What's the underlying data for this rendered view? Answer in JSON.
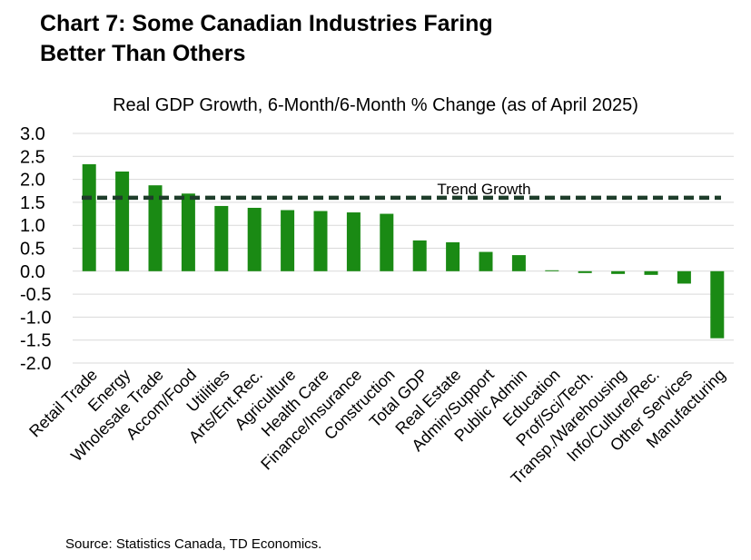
{
  "title": {
    "line1": "Chart 7: Some Canadian Industries Faring",
    "line2": "Better Than Others"
  },
  "source": "Source: Statistics Canada, TD Economics.",
  "colors": {
    "bar": "#1a8a14",
    "trend": "#1e3d2a",
    "grid": "#d9d9d9"
  },
  "chart_data": {
    "type": "bar",
    "title": "Real GDP Growth, 6-Month/6-Month % Change (as of April 2025)",
    "xlabel": "",
    "ylabel": "",
    "ylim": [
      -2.0,
      3.0
    ],
    "yticks": [
      3.0,
      2.5,
      2.0,
      1.5,
      1.0,
      0.5,
      0.0,
      -0.5,
      -1.0,
      -1.5,
      -2.0
    ],
    "ytick_labels": [
      "3.0",
      "2.5",
      "2.0",
      "1.5",
      "1.0",
      "0.5",
      "0.0",
      "-0.5",
      "-1.0",
      "-1.5",
      "-2.0"
    ],
    "grid": true,
    "categories": [
      "Retail Trade",
      "Energy",
      "Wholesale Trade",
      "Accom/Food",
      "Utilities",
      "Arts/Ent.Rec.",
      "Agriculture",
      "Health Care",
      "Finance/Insurance",
      "Construction",
      "Total GDP",
      "Real Estate",
      "Admin/Support",
      "Public Admin",
      "Education",
      "Prof/Sci/Tech.",
      "Transp./Warehousing",
      "Info/Culture/Rec.",
      "Other Services",
      "Manufacturing"
    ],
    "values": [
      2.33,
      2.17,
      1.87,
      1.69,
      1.42,
      1.38,
      1.33,
      1.31,
      1.28,
      1.25,
      0.67,
      0.63,
      0.42,
      0.35,
      0.02,
      -0.04,
      -0.06,
      -0.08,
      -0.27,
      -1.46
    ],
    "reference_line": {
      "label": "Trend Growth",
      "value": 1.6
    }
  }
}
